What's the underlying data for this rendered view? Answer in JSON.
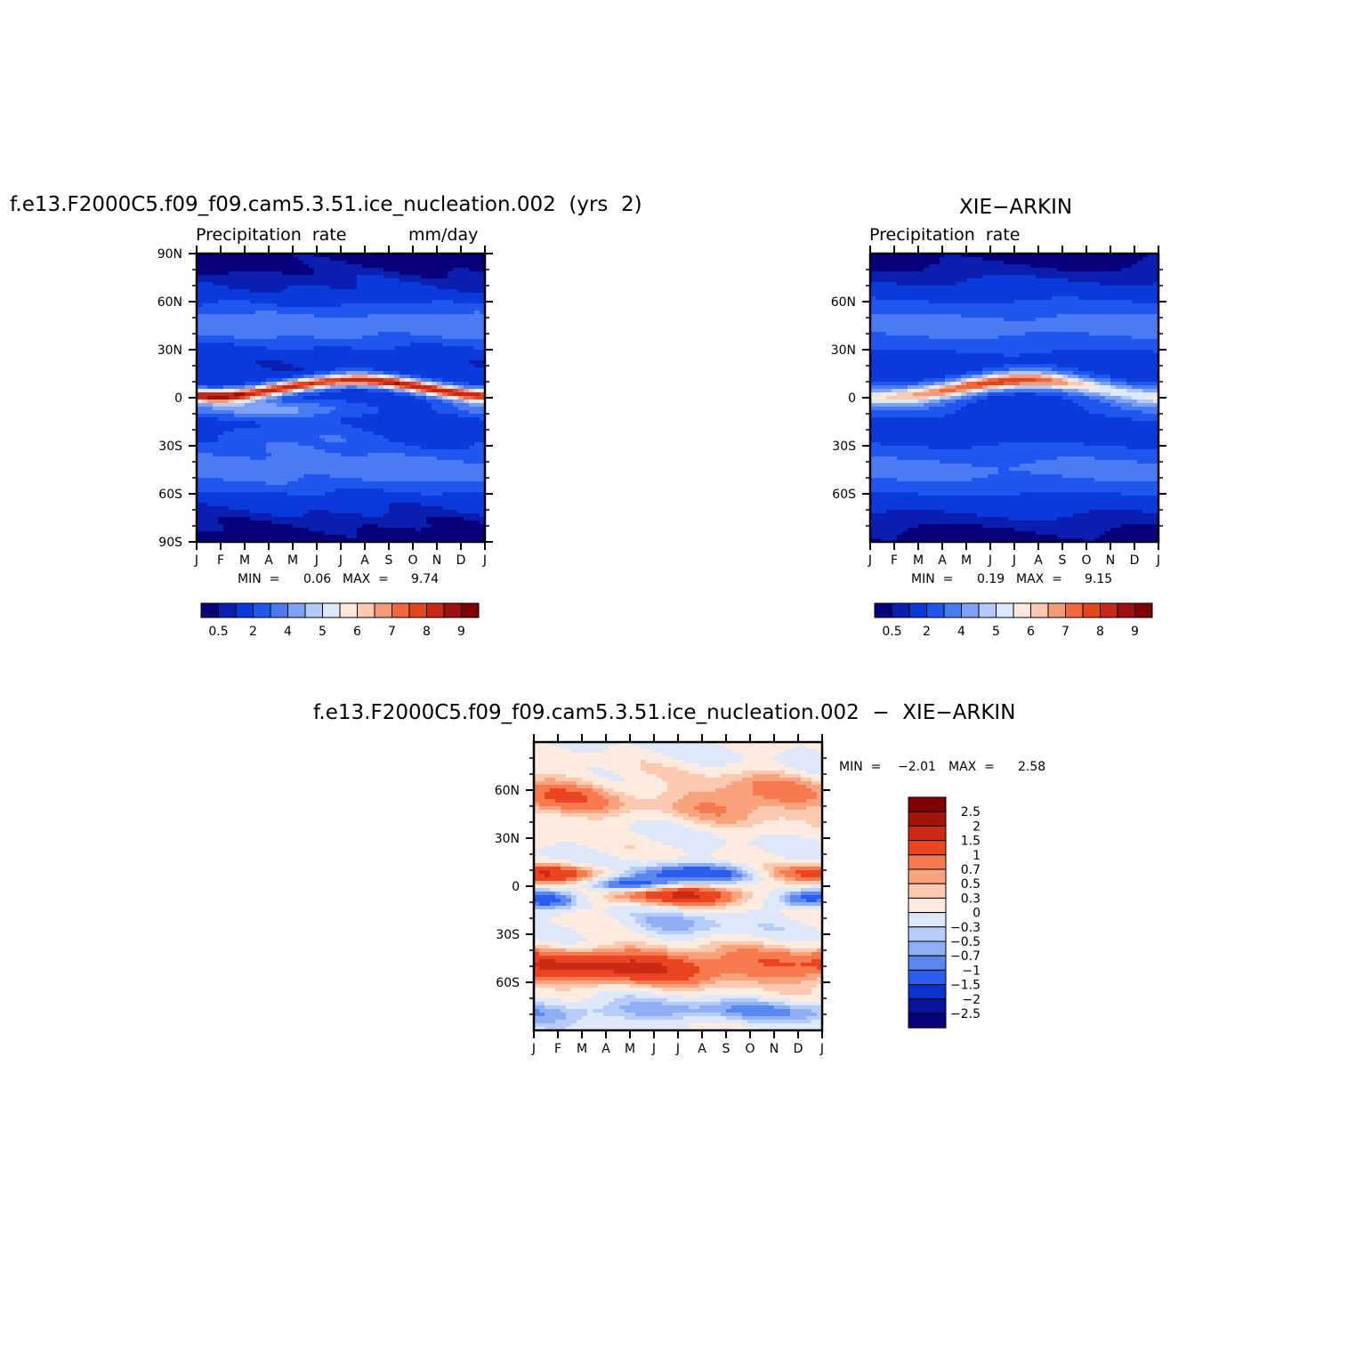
{
  "panels": {
    "model": {
      "title": "f.e13.F2000C5.f09_f09.cam5.3.51.ice_nucleation.002  (yrs  2)",
      "left_label": "Precipitation  rate",
      "right_label": "mm/day",
      "min_label": "MIN  =",
      "min_value": "0.06",
      "max_label": "MAX  =",
      "max_value": "9.74"
    },
    "obs": {
      "title": "XIE−ARKIN",
      "left_label": "Precipitation  rate",
      "min_label": "MIN  =",
      "min_value": "0.19",
      "max_label": "MAX  =",
      "max_value": "9.15"
    },
    "diff": {
      "title": "f.e13.F2000C5.f09_f09.cam5.3.51.ice_nucleation.002  −  XIE−ARKIN",
      "min_label": "MIN  =",
      "min_value": "−2.01",
      "max_label": "MAX  =",
      "max_value": "2.58"
    }
  },
  "chart_data": [
    {
      "type": "heatmap",
      "name": "model",
      "title": "f.e13.F2000C5.f09_f09.cam5.3.51.ice_nucleation.002  (yrs  2)",
      "units": "mm/day",
      "x_ticks": [
        "J",
        "F",
        "M",
        "A",
        "M",
        "J",
        "J",
        "A",
        "S",
        "O",
        "N",
        "D",
        "J"
      ],
      "y_ticks": [
        "90N",
        "60N",
        "30N",
        "0",
        "30S",
        "60S",
        "90S"
      ],
      "ylim": [
        -90,
        90
      ],
      "min": 0.06,
      "max": 9.74,
      "colorbar_labels": [
        "0.5",
        "2",
        "4",
        "5",
        "6",
        "7",
        "8",
        "9"
      ]
    },
    {
      "type": "heatmap",
      "name": "obs",
      "title": "XIE−ARKIN",
      "units": "mm/day",
      "x_ticks": [
        "J",
        "F",
        "M",
        "A",
        "M",
        "J",
        "J",
        "A",
        "S",
        "O",
        "N",
        "D",
        "J"
      ],
      "y_ticks": [
        "60N",
        "30N",
        "0",
        "30S",
        "60S"
      ],
      "ylim": [
        -90,
        90
      ],
      "min": 0.19,
      "max": 9.15,
      "colorbar_labels": [
        "0.5",
        "2",
        "4",
        "5",
        "6",
        "7",
        "8",
        "9"
      ]
    },
    {
      "type": "heatmap",
      "name": "difference",
      "title": "f.e13.F2000C5.f09_f09.cam5.3.51.ice_nucleation.002  −  XIE−ARKIN",
      "units": "mm/day",
      "x_ticks": [
        "J",
        "F",
        "M",
        "A",
        "M",
        "J",
        "J",
        "A",
        "S",
        "O",
        "N",
        "D",
        "J"
      ],
      "y_ticks": [
        "60N",
        "30N",
        "0",
        "30S",
        "60S"
      ],
      "ylim": [
        -90,
        90
      ],
      "min": -2.01,
      "max": 2.58,
      "colorbar_labels": [
        "2.5",
        "2",
        "1.5",
        "1",
        "0.7",
        "0.5",
        "0.3",
        "0",
        "−0.3",
        "−0.5",
        "−0.7",
        "−1",
        "−1.5",
        "−2",
        "−2.5"
      ]
    }
  ],
  "colors": {
    "precip_scale": [
      "#08007a",
      "#0a1fb0",
      "#0a3adc",
      "#1e56f0",
      "#4a7bf2",
      "#7ea2f6",
      "#b4c9fa",
      "#ddeafc",
      "#fde8dc",
      "#fbc9b0",
      "#f79a78",
      "#f2653e",
      "#e4451f",
      "#c8271a",
      "#9e1010",
      "#800000"
    ],
    "diff_scale": [
      "#800000",
      "#a41408",
      "#cc2a12",
      "#ea4421",
      "#f67a4d",
      "#f8a27e",
      "#fbcab0",
      "#fdebe0",
      "#dde9fb",
      "#b7cdf8",
      "#8faff4",
      "#5b88ef",
      "#2c5df0",
      "#0b32cc",
      "#08159a",
      "#07007b"
    ]
  }
}
